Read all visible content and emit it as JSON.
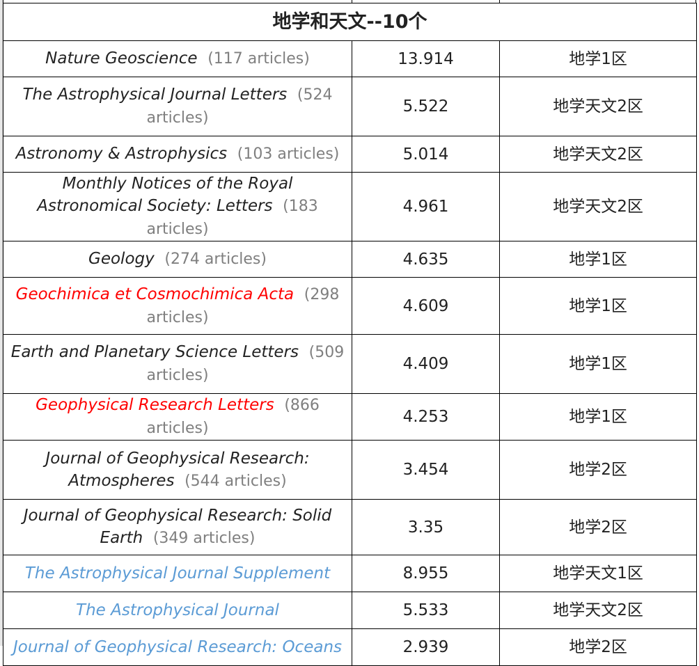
{
  "title": "地学和天文--10个",
  "colors": {
    "highlight_red": "#ff0000",
    "highlight_blue": "#5b9bd5",
    "count_gray": "#7f7f7f"
  },
  "rows": [
    {
      "journal": "Nature Geoscience",
      "count": "(117 articles)",
      "if": "13.914",
      "zone": "地学1区",
      "style": "normal"
    },
    {
      "journal": "The Astrophysical Journal Letters",
      "count": "(524 articles)",
      "if": "5.522",
      "zone": "地学天文2区",
      "style": "normal"
    },
    {
      "journal": "Astronomy & Astrophysics",
      "count": "(103 articles)",
      "if": "5.014",
      "zone": "地学天文2区",
      "style": "normal"
    },
    {
      "journal": "Monthly Notices of the Royal Astronomical Society: Letters",
      "count": "(183 articles)",
      "if": "4.961",
      "zone": "地学天文2区",
      "style": "normal"
    },
    {
      "journal": "Geology",
      "count": "(274 articles)",
      "if": "4.635",
      "zone": "地学1区",
      "style": "normal"
    },
    {
      "journal": "Geochimica et Cosmochimica Acta",
      "count": "(298 articles)",
      "if": "4.609",
      "zone": "地学1区",
      "style": "red"
    },
    {
      "journal": "Earth and Planetary Science Letters",
      "count": "(509 articles)",
      "if": "4.409",
      "zone": "地学1区",
      "style": "normal"
    },
    {
      "journal": "Geophysical Research Letters",
      "count": "(866 articles)",
      "if": "4.253",
      "zone": "地学1区",
      "style": "red"
    },
    {
      "journal": "Journal of Geophysical Research: Atmospheres",
      "count": "(544 articles)",
      "if": "3.454",
      "zone": "地学2区",
      "style": "normal"
    },
    {
      "journal": "Journal of Geophysical Research: Solid Earth",
      "count": "(349 articles)",
      "if": "3.35",
      "zone": "地学2区",
      "style": "normal"
    },
    {
      "journal": "The Astrophysical Journal Supplement",
      "count": "",
      "if": "8.955",
      "zone": "地学天文1区",
      "style": "blue"
    },
    {
      "journal": "The Astrophysical Journal",
      "count": "",
      "if": "5.533",
      "zone": "地学天文2区",
      "style": "blue"
    },
    {
      "journal": "Journal of Geophysical Research: Oceans",
      "count": "",
      "if": "2.939",
      "zone": "地学2区",
      "style": "blue"
    }
  ]
}
